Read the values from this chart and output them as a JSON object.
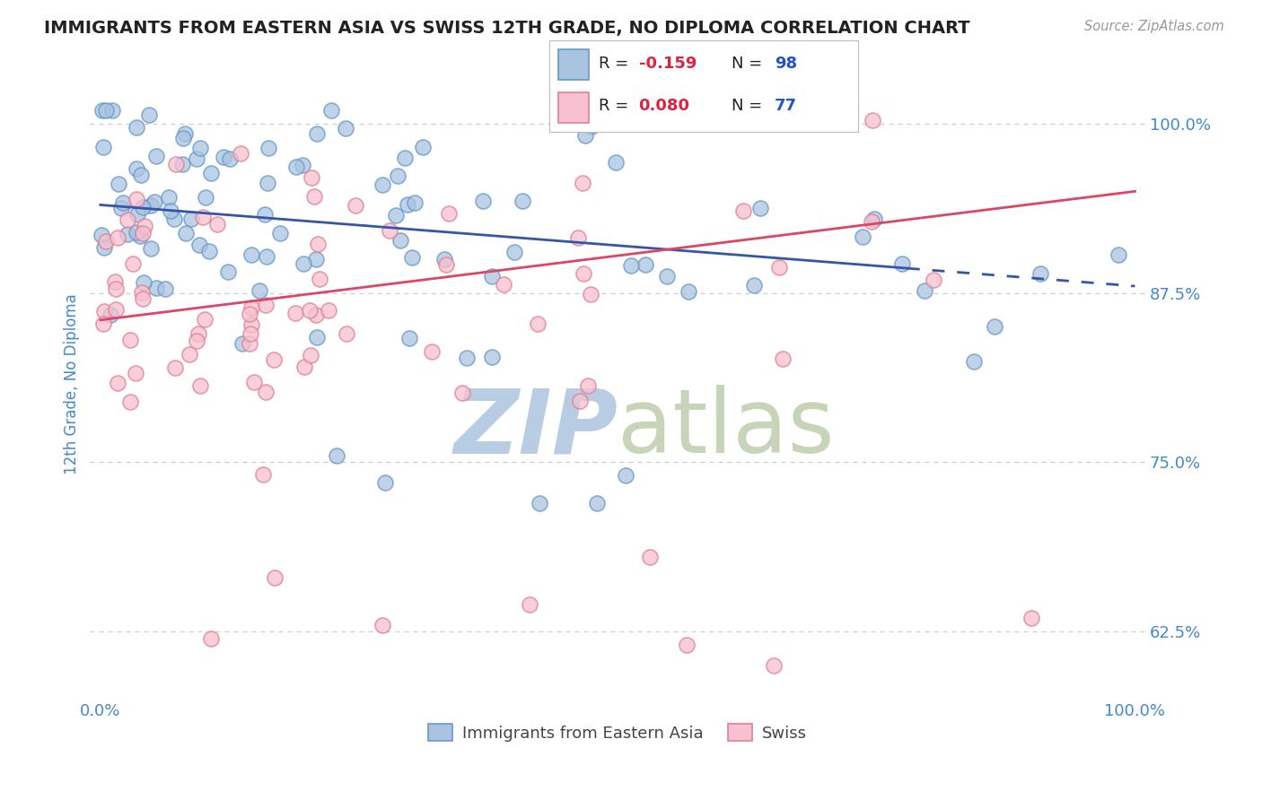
{
  "title": "IMMIGRANTS FROM EASTERN ASIA VS SWISS 12TH GRADE, NO DIPLOMA CORRELATION CHART",
  "source": "Source: ZipAtlas.com",
  "ylabel": "12th Grade, No Diploma",
  "xlim": [
    -0.01,
    1.01
  ],
  "ylim": [
    0.575,
    1.04
  ],
  "yticks": [
    0.625,
    0.75,
    0.875,
    1.0
  ],
  "ytick_labels": [
    "62.5%",
    "75.0%",
    "87.5%",
    "100.0%"
  ],
  "legend_r1": "-0.159",
  "legend_n1": "98",
  "legend_r2": "0.080",
  "legend_n2": "77",
  "series1_label": "Immigrants from Eastern Asia",
  "series2_label": "Swiss",
  "series1_dot_face": "#aac4e0",
  "series1_dot_edge": "#6699cc",
  "series2_dot_face": "#f8c0d0",
  "series2_dot_edge": "#e08090",
  "trendline1_color": "#3355aa",
  "trendline2_color": "#dd4466",
  "background_color": "#ffffff",
  "grid_color": "#cccccc",
  "axis_label_color": "#4488cc",
  "title_color": "#222222",
  "source_color": "#999999",
  "r_color": "#dd2244",
  "n_color": "#2255cc",
  "legend_text_color": "#222222",
  "trendline1_y_start": 0.94,
  "trendline1_y_end": 0.88,
  "trendline2_y_start": 0.855,
  "trendline2_y_end": 0.95,
  "trendline1_dash_start_x": 0.78,
  "watermark_zip_color": "#b8cce4",
  "watermark_atlas_color": "#c8d4b8",
  "seed_blue": 42,
  "seed_pink": 77
}
